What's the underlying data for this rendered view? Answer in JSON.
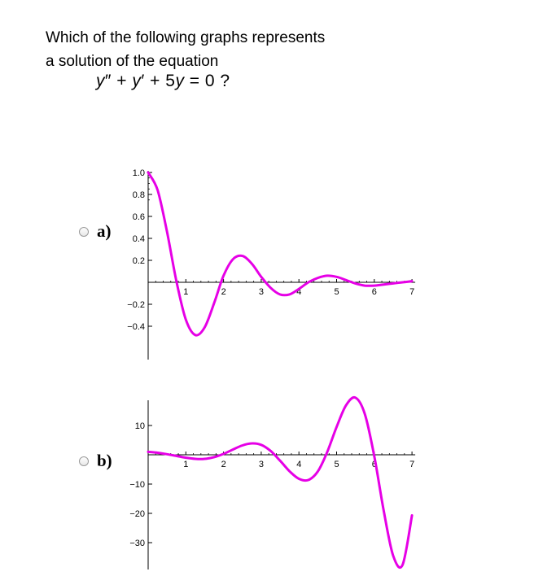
{
  "question": {
    "line1": "Which of the following graphs represents",
    "line2": "a solution of the equation"
  },
  "equation": {
    "lhs_parts": [
      "y",
      "″ + ",
      "y",
      "′ + 5",
      "y"
    ],
    "rhs": " = 0 ?"
  },
  "options": [
    {
      "radio_selected": false,
      "label": "a)"
    },
    {
      "radio_selected": false,
      "label": "b)"
    }
  ],
  "colors": {
    "curve": "#e600e6",
    "axis": "#000000"
  },
  "chart_data": [
    {
      "type": "line",
      "title": "",
      "xlabel": "",
      "ylabel": "",
      "xlim": [
        0,
        7
      ],
      "ylim": [
        -0.5,
        1.0
      ],
      "xticks": [
        1,
        2,
        3,
        4,
        5,
        6,
        7
      ],
      "xtick_labels": [
        "1",
        "2",
        "3",
        "4",
        "5",
        "6",
        "7"
      ],
      "yticks": [
        1.0,
        0.8,
        0.6,
        0.4,
        0.2,
        -0.2,
        -0.4
      ],
      "ytick_labels": [
        "1.0",
        "0.8",
        "0.6",
        "0.4",
        "0.2",
        "-0.2",
        "-0.4"
      ],
      "series": [
        {
          "x": [
            0,
            0.25,
            0.5,
            0.75,
            1.0,
            1.25,
            1.5,
            1.75,
            2.0,
            2.25,
            2.5,
            2.75,
            3.0,
            3.25,
            3.5,
            3.75,
            4.0,
            4.25,
            4.5,
            4.75,
            5.0,
            5.25,
            5.5,
            5.75,
            6.0,
            6.25,
            6.5,
            6.75,
            7.0
          ],
          "y": [
            1.0,
            0.84,
            0.46,
            0.01,
            -0.34,
            -0.48,
            -0.41,
            -0.19,
            0.06,
            0.21,
            0.24,
            0.17,
            0.05,
            -0.05,
            -0.11,
            -0.11,
            -0.06,
            0.0,
            0.04,
            0.06,
            0.05,
            0.02,
            -0.01,
            -0.03,
            -0.03,
            -0.02,
            -0.01,
            0.0,
            0.01
          ]
        }
      ]
    },
    {
      "type": "line",
      "title": "",
      "xlabel": "",
      "ylabel": "",
      "xlim": [
        0,
        7
      ],
      "ylim": [
        -35,
        15
      ],
      "xticks": [
        1,
        2,
        3,
        4,
        5,
        6,
        7
      ],
      "xtick_labels": [
        "1",
        "2",
        "3",
        "4",
        "5",
        "6",
        "7"
      ],
      "yticks": [
        10,
        -10,
        -20,
        -30
      ],
      "ytick_labels": [
        "10",
        "-10",
        "-20",
        "-30"
      ],
      "series": [
        {
          "x": [
            0,
            0.25,
            0.5,
            0.75,
            1.0,
            1.25,
            1.5,
            1.75,
            2.0,
            2.25,
            2.5,
            2.75,
            3.0,
            3.25,
            3.5,
            3.75,
            4.0,
            4.25,
            4.5,
            4.75,
            5.0,
            5.25,
            5.5,
            5.75,
            6.0,
            6.25,
            6.5,
            6.75,
            7.0
          ],
          "y": [
            1.0,
            0.7,
            0.2,
            -0.4,
            -1.0,
            -1.4,
            -1.4,
            -0.8,
            0.3,
            1.8,
            3.2,
            3.9,
            3.4,
            1.3,
            -2.0,
            -5.6,
            -8.2,
            -8.6,
            -5.7,
            0.9,
            9.5,
            16.9,
            19.5,
            13.9,
            -0.5,
            -19.1,
            -34.4,
            -37.6,
            -20.7
          ]
        }
      ]
    }
  ]
}
